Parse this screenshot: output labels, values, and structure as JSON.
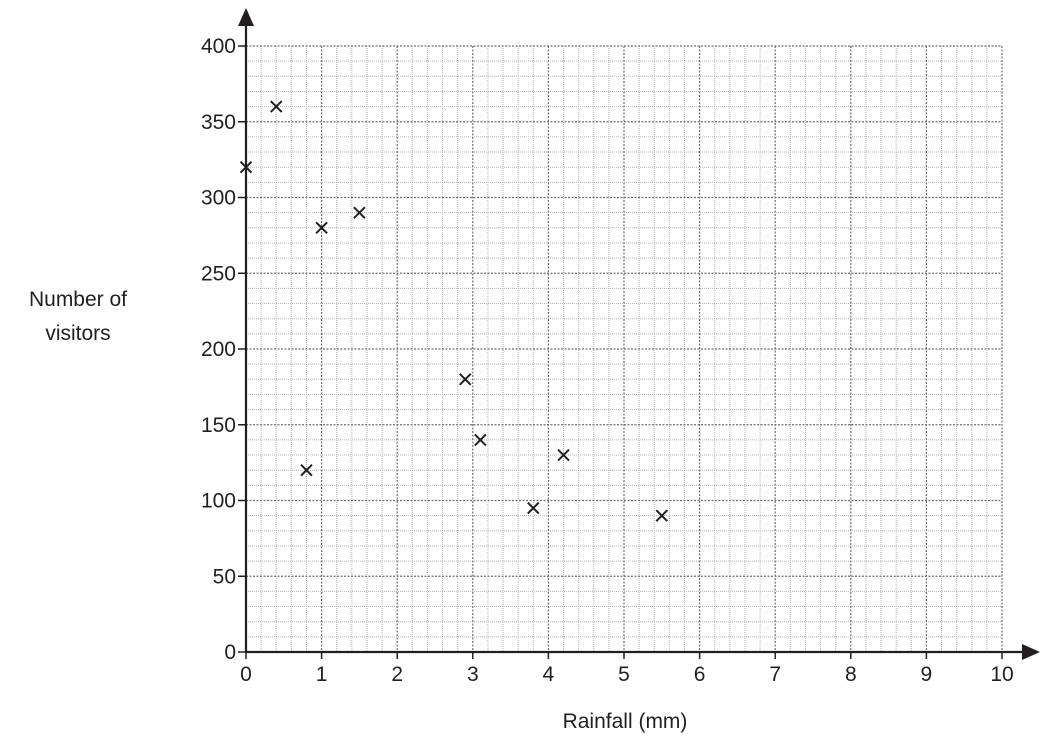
{
  "chart_data": {
    "type": "scatter",
    "xlabel": "Rainfall (mm)",
    "ylabel": [
      "Number of",
      "visitors"
    ],
    "xlim": [
      0,
      10
    ],
    "ylim": [
      0,
      400
    ],
    "x_ticks": [
      "0",
      "1",
      "2",
      "3",
      "4",
      "5",
      "6",
      "7",
      "8",
      "9",
      "10"
    ],
    "y_ticks": [
      "0",
      "50",
      "100",
      "150",
      "200",
      "250",
      "300",
      "350",
      "400"
    ],
    "grid": true,
    "marker": "cross",
    "points": [
      {
        "x": 0,
        "y": 320
      },
      {
        "x": 0.4,
        "y": 360
      },
      {
        "x": 0.8,
        "y": 120
      },
      {
        "x": 1.0,
        "y": 280
      },
      {
        "x": 1.5,
        "y": 290
      },
      {
        "x": 2.9,
        "y": 180
      },
      {
        "x": 3.1,
        "y": 140
      },
      {
        "x": 3.8,
        "y": 95
      },
      {
        "x": 4.2,
        "y": 130
      },
      {
        "x": 5.5,
        "y": 90
      }
    ],
    "colors": {
      "axis": "#231f20",
      "grid_major": "#6d6e70",
      "grid_minor": "#b5b6b8",
      "marker": "#231f20"
    }
  }
}
